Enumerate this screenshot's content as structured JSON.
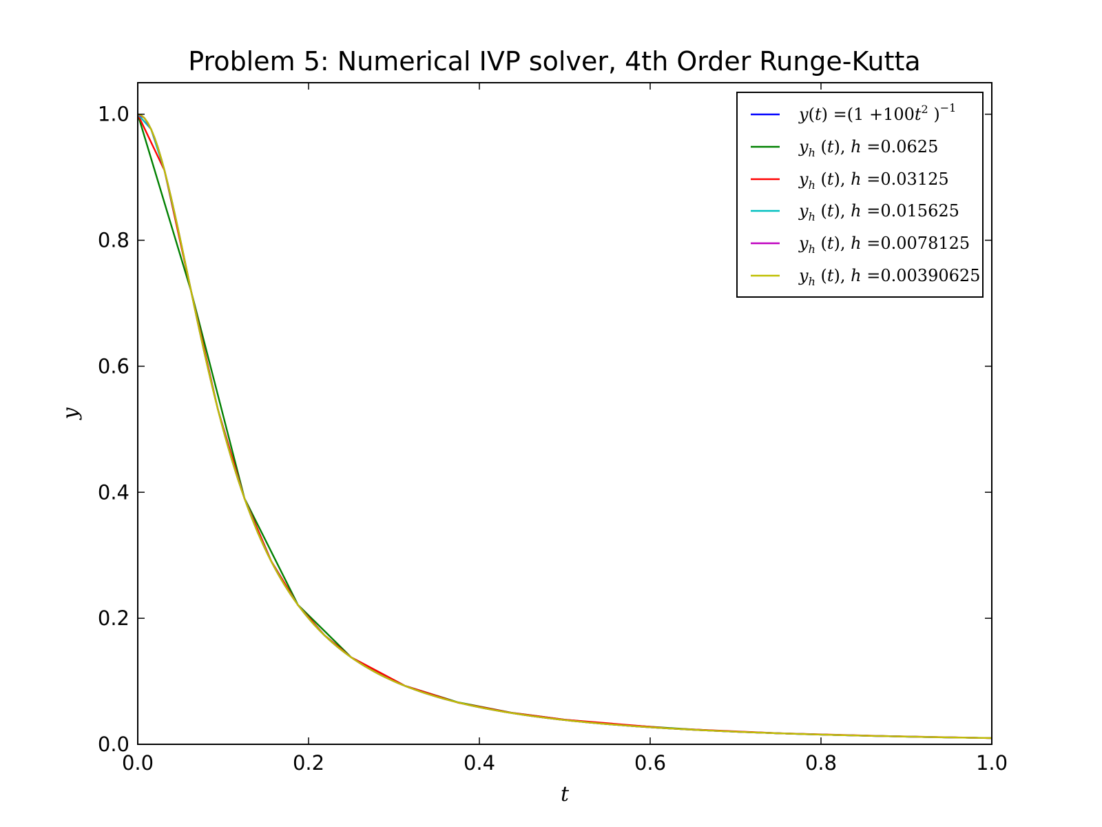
{
  "chart_data": {
    "type": "line",
    "title": "Problem 5: Numerical IVP solver, 4th Order Runge-Kutta",
    "xlabel": "t",
    "ylabel": "y",
    "xlim": [
      0.0,
      1.0
    ],
    "ylim": [
      0.0,
      1.05
    ],
    "xticks": [
      "0.0",
      "0.2",
      "0.4",
      "0.6",
      "0.8",
      "1.0"
    ],
    "yticks": [
      "0.0",
      "0.2",
      "0.4",
      "0.6",
      "0.8",
      "1.0"
    ],
    "grid": false,
    "legend_position": "top-right",
    "series": [
      {
        "name": "y(t) = (1 + 100t² )⁻¹",
        "color": "#0000ff",
        "function": "1/(1+100*t^2)",
        "h": 0.00390625
      },
      {
        "name": "y_h (t), h = 0.0625",
        "color": "#008000",
        "x": [
          0,
          0.0625,
          0.125,
          0.1875,
          0.25,
          0.3125,
          0.375,
          0.4375,
          0.5,
          0.5625,
          0.625,
          0.6875,
          0.75,
          0.8125,
          0.875,
          0.9375,
          1.0
        ],
        "values": [
          1.0,
          0.7191,
          0.3903,
          0.2214,
          0.1379,
          0.093,
          0.0666,
          0.0501,
          0.039,
          0.0312,
          0.0256,
          0.0207,
          0.0175,
          0.015,
          0.013,
          0.0111,
          0.01
        ]
      },
      {
        "name": "y_h (t), h = 0.03125",
        "color": "#ff0000",
        "x": [
          0,
          0.03125,
          0.0625,
          0.09375,
          0.125,
          0.15625,
          0.1875,
          0.21875,
          0.25,
          0.3125,
          0.375,
          0.4375,
          0.5,
          0.625,
          0.75,
          0.875,
          1.0
        ],
        "values": [
          1.0,
          0.911,
          0.719,
          0.532,
          0.39,
          0.291,
          0.221,
          0.173,
          0.138,
          0.093,
          0.066,
          0.05,
          0.039,
          0.025,
          0.0175,
          0.013,
          0.0098
        ]
      },
      {
        "name": "y_h (t), h = 0.015625",
        "color": "#00bfbf",
        "function": "1/(1+100*t^2)",
        "h": 0.015625
      },
      {
        "name": "y_h (t), h = 0.0078125",
        "color": "#bf00bf",
        "function": "1/(1+100*t^2)",
        "h": 0.0078125
      },
      {
        "name": "y_h (t), h = 0.00390625",
        "color": "#bfbf00",
        "function": "1/(1+100*t^2)",
        "h": 0.00390625
      }
    ]
  }
}
